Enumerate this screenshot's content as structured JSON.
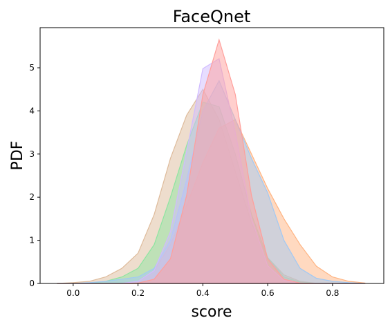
{
  "chart_data": {
    "type": "area",
    "title": "FaceQnet",
    "xlabel": "score",
    "ylabel": "PDF",
    "x": [
      -0.05,
      0,
      0.05,
      0.1,
      0.15,
      0.2,
      0.25,
      0.3,
      0.35,
      0.4,
      0.45,
      0.5,
      0.55,
      0.6,
      0.65,
      0.7,
      0.75,
      0.8,
      0.85,
      0.9
    ],
    "series": [
      {
        "color": "#debb9b",
        "values": [
          0,
          0.02,
          0.05,
          0.15,
          0.35,
          0.7,
          1.6,
          2.9,
          3.9,
          4.5,
          3.8,
          2.6,
          1.4,
          0.6,
          0.2,
          0.05,
          0,
          0,
          0,
          0
        ]
      },
      {
        "color": "#8de5a1",
        "values": [
          0,
          0,
          0,
          0.05,
          0.15,
          0.35,
          0.9,
          2.0,
          3.2,
          4.2,
          4.1,
          3.0,
          1.6,
          0.6,
          0.15,
          0.03,
          0,
          0,
          0,
          0
        ]
      },
      {
        "color": "#ffb482",
        "values": [
          0,
          0,
          0,
          0,
          0,
          0.05,
          0.3,
          0.9,
          1.8,
          2.8,
          3.6,
          3.8,
          3.0,
          2.2,
          1.5,
          0.9,
          0.4,
          0.15,
          0.05,
          0.01
        ]
      },
      {
        "color": "#a1c9f4",
        "values": [
          0,
          0,
          0.02,
          0.05,
          0.1,
          0.15,
          0.35,
          1.0,
          2.4,
          4.0,
          4.7,
          3.8,
          2.9,
          2.1,
          1.0,
          0.35,
          0.12,
          0.05,
          0.02,
          0
        ]
      },
      {
        "color": "#d0bbff",
        "values": [
          0,
          0,
          0,
          0,
          0,
          0.05,
          0.3,
          1.2,
          3.06,
          4.98,
          5.21,
          3.5,
          1.5,
          0.41,
          0.07,
          0.01,
          0,
          0,
          0,
          0
        ]
      },
      {
        "color": "#ff9f9b",
        "values": [
          0,
          0,
          0,
          0,
          0,
          0.01,
          0.1,
          0.57,
          2.04,
          4.38,
          5.65,
          4.38,
          2.04,
          0.57,
          0.1,
          0.01,
          0,
          0,
          0,
          0
        ]
      }
    ],
    "xlim": [
      -0.102,
      0.958
    ],
    "ylim": [
      0,
      5.93
    ],
    "xticks": [
      {
        "value": 0,
        "label": "0.0"
      },
      0.2,
      0.4,
      0.6,
      0.8
    ],
    "yticks": [
      0,
      1,
      2,
      3,
      4,
      5
    ],
    "fill_opacity": 0.5
  }
}
